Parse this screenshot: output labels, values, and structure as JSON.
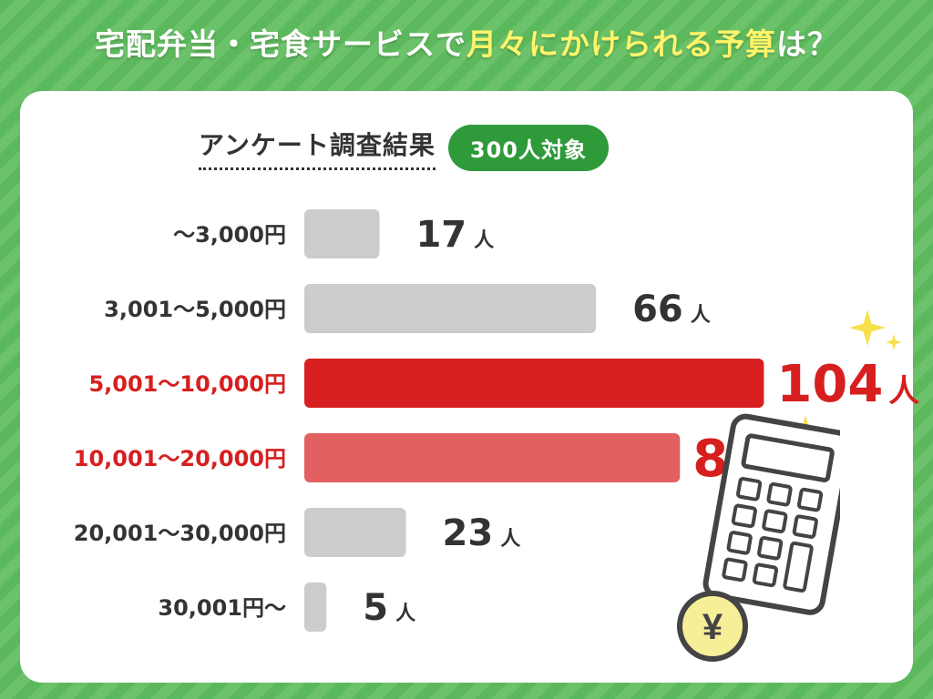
{
  "header": {
    "title_part1": "宅配弁当・宅食サービスで",
    "title_highlight": "月々にかけられる予算",
    "title_part2": "は？"
  },
  "subtitle": {
    "text": "アンケート調査結果",
    "badge": "300人対象"
  },
  "colors": {
    "normal_bar": "#cccccc",
    "top_bar": "#d71f1f",
    "second_bar": "#e26060",
    "normal_text": "#333333",
    "highlight_text": "#d71f1f",
    "sparkle": "#f7e04a"
  },
  "chart_data": {
    "type": "bar",
    "orientation": "horizontal",
    "unit": "人",
    "categories": [
      "～3,000円",
      "3,001～5,000円",
      "5,001～10,000円",
      "10,001～20,000円",
      "20,001～30,000円",
      "30,001円～"
    ],
    "values": [
      17,
      66,
      104,
      85,
      23,
      5
    ],
    "highlight": [
      "none",
      "none",
      "top",
      "second",
      "none",
      "none"
    ],
    "grid": false
  },
  "icons": [
    "sparkle-icon",
    "calculator-icon",
    "yen-coin-icon"
  ]
}
